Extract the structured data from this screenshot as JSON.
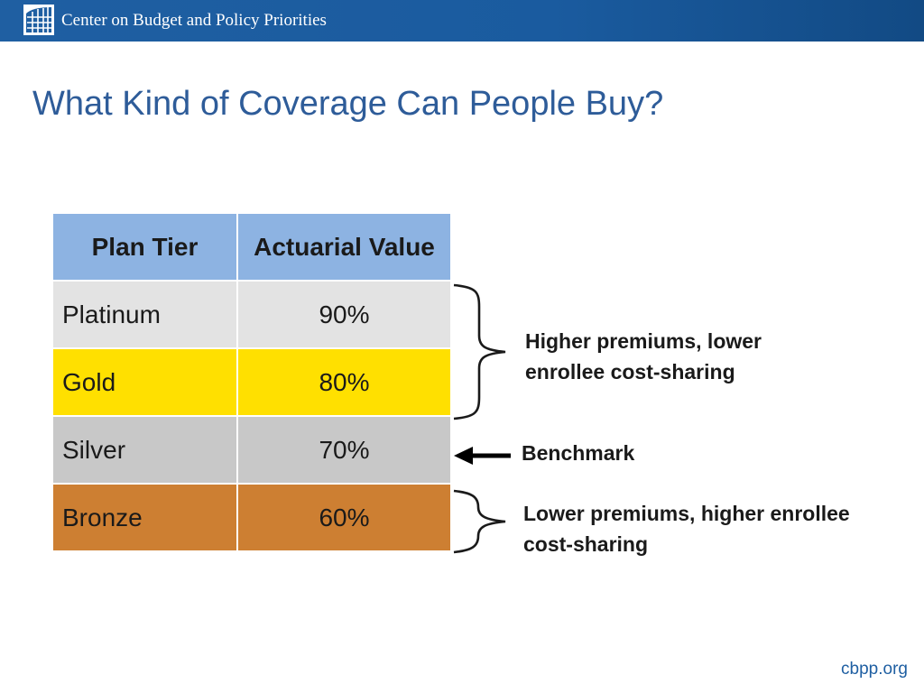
{
  "header": {
    "org_name": "Center on Budget and Policy Priorities"
  },
  "slide": {
    "title": "What Kind of Coverage Can People Buy?"
  },
  "table": {
    "columns": [
      "Plan Tier",
      "Actuarial Value"
    ],
    "rows": [
      {
        "tier": "Platinum",
        "value": "90%",
        "color": "#e3e3e3"
      },
      {
        "tier": "Gold",
        "value": "80%",
        "color": "#ffe000"
      },
      {
        "tier": "Silver",
        "value": "70%",
        "color": "#c8c8c8"
      },
      {
        "tier": "Bronze",
        "value": "60%",
        "color": "#cd7f32"
      }
    ],
    "header_color": "#8db3e2"
  },
  "annotations": {
    "higher": "Higher premiums, lower enrollee cost-sharing",
    "benchmark": "Benchmark",
    "lower": "Lower premiums, higher enrollee cost-sharing"
  },
  "footer": {
    "url": "cbpp.org"
  }
}
